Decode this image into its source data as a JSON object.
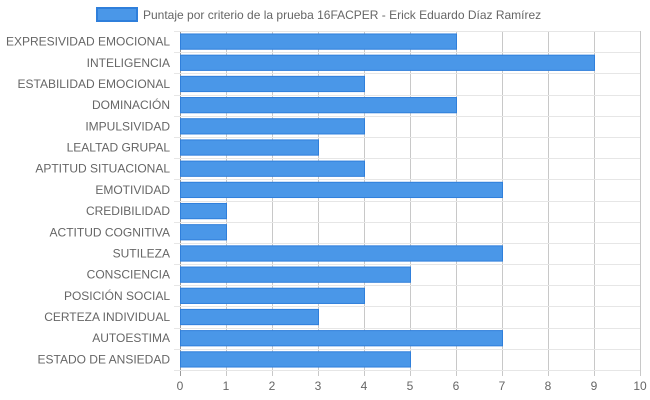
{
  "colors": {
    "bar_fill": "#4a97e8",
    "bar_stroke": "#2f7fdb",
    "grid": "#e6e6e6",
    "grid_strong": "#c8c8c8",
    "axis": "#999999",
    "label": "#666666"
  },
  "chart_data": {
    "type": "bar",
    "orientation": "horizontal",
    "legend_position": "top",
    "grid": true,
    "xlim": [
      0,
      10
    ],
    "xticks": [
      0,
      1,
      2,
      3,
      4,
      5,
      6,
      7,
      8,
      9,
      10
    ],
    "categories": [
      "EXPRESIVIDAD EMOCIONAL",
      "INTELIGENCIA",
      "ESTABILIDAD EMOCIONAL",
      "DOMINACIÓN",
      "IMPULSIVIDAD",
      "LEALTAD GRUPAL",
      "APTITUD SITUACIONAL",
      "EMOTIVIDAD",
      "CREDIBILIDAD",
      "ACTITUD COGNITIVA",
      "SUTILEZA",
      "CONSCIENCIA",
      "POSICIÓN SOCIAL",
      "CERTEZA INDIVIDUAL",
      "AUTOESTIMA",
      "ESTADO DE ANSIEDAD"
    ],
    "series": [
      {
        "name": "Puntaje por criterio de la prueba 16FACPER - Erick Eduardo Díaz Ramírez",
        "values": [
          6,
          9,
          4,
          6,
          4,
          3,
          4,
          7,
          1,
          1,
          7,
          5,
          4,
          3,
          7,
          5
        ]
      }
    ]
  }
}
